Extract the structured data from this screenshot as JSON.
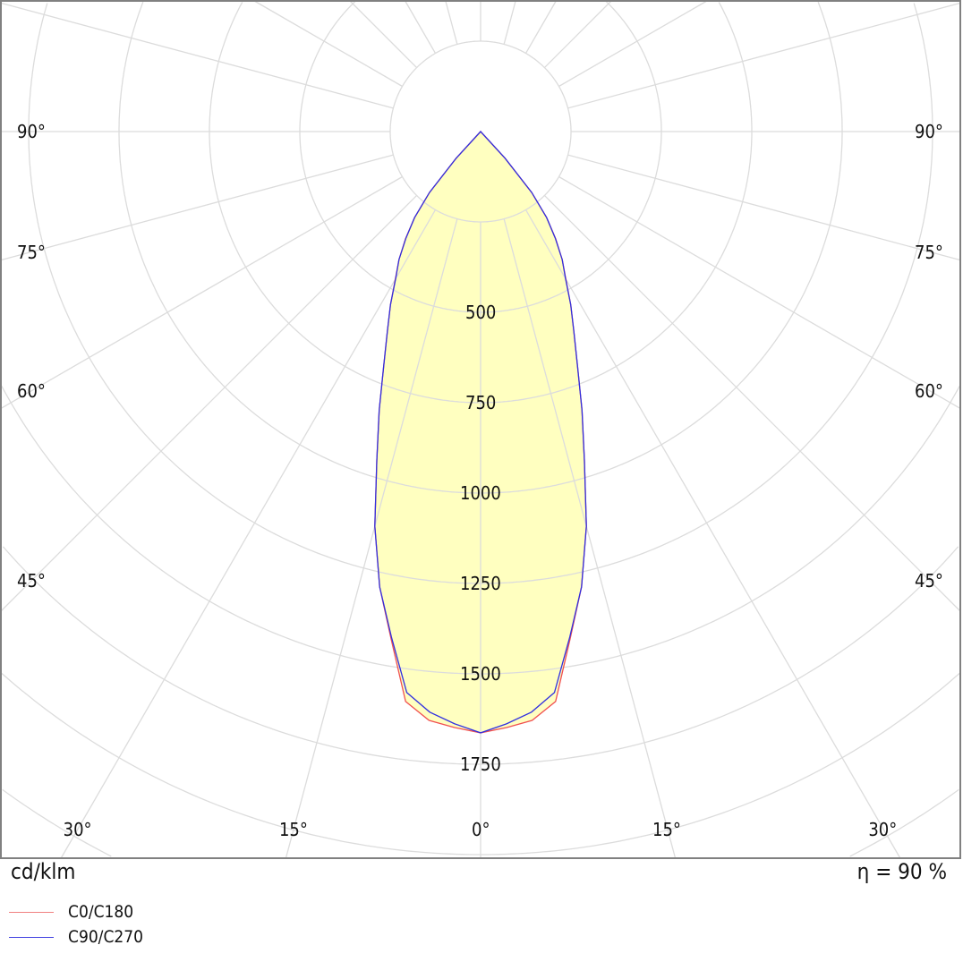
{
  "chart_data": {
    "type": "polar",
    "unit_label": "cd/klm",
    "efficiency_label": "η = 90 %",
    "radial_ticks": [
      250,
      500,
      750,
      1000,
      1250,
      1500,
      1750,
      2000,
      2250,
      2500,
      2750,
      3000,
      3250,
      3500
    ],
    "radial_tick_labels": [
      "500",
      "750",
      "1000",
      "1250",
      "1500",
      "1750"
    ],
    "angle_labels": {
      "left": [
        "90°",
        "75°",
        "60°",
        "45°",
        "30°",
        "15°"
      ],
      "center": "0°",
      "right": [
        "15°",
        "30°",
        "45°",
        "60°",
        "75°",
        "90°"
      ]
    },
    "angle_step_deg": 15,
    "grid": true,
    "legend_placement": "bottom-left",
    "fill_color": "#ffffc0",
    "series": [
      {
        "name": "C0/C180",
        "color": "#f05050",
        "gamma": [
          0,
          2.5,
          5,
          7.5,
          10,
          12.5,
          15,
          17.5,
          20,
          22.5,
          25,
          27.5,
          30,
          32.5,
          35,
          37.5,
          40,
          42.5,
          45
        ],
        "intensity": [
          1663,
          1650,
          1635,
          1590,
          1425,
          1290,
          1130,
          955,
          820,
          700,
          610,
          540,
          472,
          420,
          362,
          300,
          220,
          100,
          0
        ]
      },
      {
        "name": "C90/C270",
        "color": "#3030e0",
        "gamma": [
          0,
          2.5,
          5,
          7.5,
          10,
          12.5,
          15,
          17.5,
          20,
          22.5,
          25,
          27.5,
          30,
          32.5,
          35,
          37.5,
          40,
          42.5,
          45
        ],
        "intensity": [
          1663,
          1640,
          1612,
          1565,
          1420,
          1290,
          1130,
          955,
          820,
          700,
          610,
          540,
          470,
          420,
          360,
          300,
          220,
          100,
          0
        ]
      }
    ]
  }
}
